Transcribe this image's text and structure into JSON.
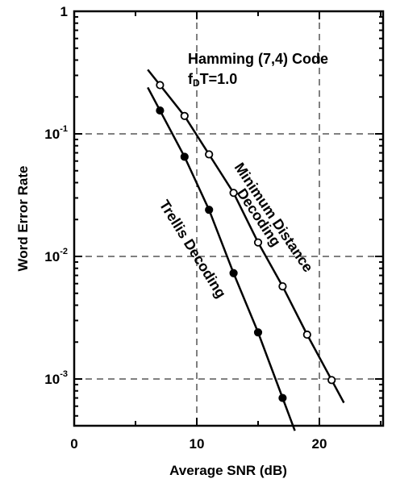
{
  "chart_data": {
    "type": "line",
    "title": "",
    "xlabel": "Average SNR (dB)",
    "ylabel": "Word Error Rate",
    "x_ticks": [
      "0",
      "10",
      "20"
    ],
    "y_ticks": [
      {
        "base": "1",
        "exp": ""
      },
      {
        "base": "10",
        "exp": "-1"
      },
      {
        "base": "10",
        "exp": "-2"
      },
      {
        "base": "10",
        "exp": "-3"
      }
    ],
    "xlim": [
      0,
      26
    ],
    "ylim": [
      0.0003,
      1
    ],
    "y_scale": "log",
    "grid": true,
    "annotations": {
      "code_line": "Hamming (7,4) Code",
      "fdt_prefix": "f",
      "fdt_sub": "D",
      "fdt_suffix": "T=1.0"
    },
    "series": [
      {
        "name": "Minimum Distance Decoding",
        "label_line1": "Minimum Distance",
        "label_line2": "Decoding",
        "marker": "open-circle",
        "x": [
          7,
          9,
          11,
          13,
          15,
          17,
          19,
          21
        ],
        "y": [
          0.25,
          0.14,
          0.068,
          0.033,
          0.013,
          0.0057,
          0.0023,
          0.00098
        ]
      },
      {
        "name": "Trellis Decoding",
        "label_line1": "Trellis Decoding",
        "marker": "filled-circle",
        "x": [
          7,
          9,
          11,
          13,
          15,
          17
        ],
        "y": [
          0.155,
          0.065,
          0.024,
          0.0073,
          0.0024,
          0.0007
        ]
      }
    ]
  }
}
